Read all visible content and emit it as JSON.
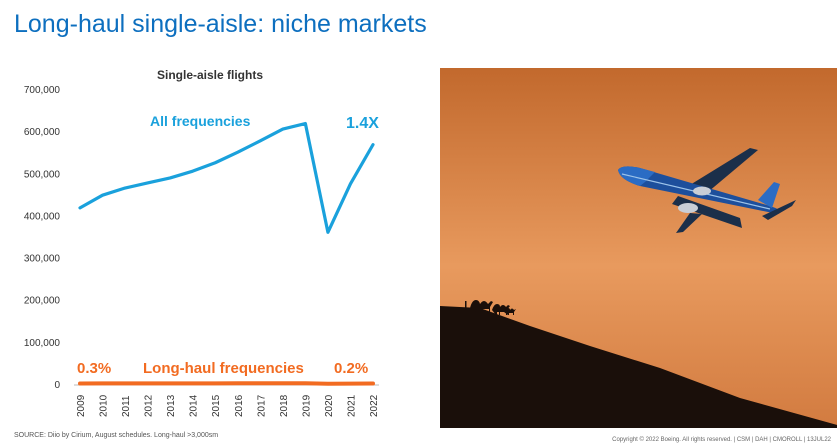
{
  "slide": {
    "title": "Long-haul single-aisle: niche markets",
    "footnote": "SOURCE: Diio by Cirium, August schedules. Long-haul >3,000sm",
    "copyright": "Copyright © 2022 Boeing. All rights reserved.  |  CSM  |  DAH  |  CMOROLL  |  13JUL22"
  },
  "chart_data": {
    "type": "line",
    "title": "Single-aisle flights",
    "x": [
      "2009",
      "2010",
      "2011",
      "2012",
      "2013",
      "2014",
      "2015",
      "2016",
      "2017",
      "2018",
      "2019",
      "2020",
      "2021",
      "2022"
    ],
    "ylim": [
      0,
      700000
    ],
    "yticks": [
      0,
      100000,
      200000,
      300000,
      400000,
      500000,
      600000,
      700000
    ],
    "ytick_labels": [
      "0",
      "100,000",
      "200,000",
      "300,000",
      "400,000",
      "500,000",
      "600,000",
      "700,000"
    ],
    "grid": false,
    "series": [
      {
        "name": "All frequencies",
        "color": "#1aa1dc",
        "values": [
          418000,
          448000,
          465000,
          477000,
          489000,
          505000,
          525000,
          550000,
          577000,
          605000,
          618000,
          360000,
          475000,
          568000
        ]
      },
      {
        "name": "Long-haul frequencies",
        "color": "#f26b21",
        "values": [
          1300,
          1400,
          1400,
          1400,
          1500,
          1500,
          1600,
          1700,
          1700,
          1800,
          1800,
          700,
          1000,
          1100
        ]
      }
    ],
    "annotations": {
      "all_multiplier": "1.4X",
      "longhaul_start_share": "0.3%",
      "longhaul_end_share": "0.2%"
    }
  },
  "photo": {
    "sky_top": "#c2692d",
    "sky_mid": "#e89a5e",
    "hill": "#1a0f0a",
    "plane_body": "#1d4f9c",
    "plane_nose": "#2b6cc4"
  }
}
